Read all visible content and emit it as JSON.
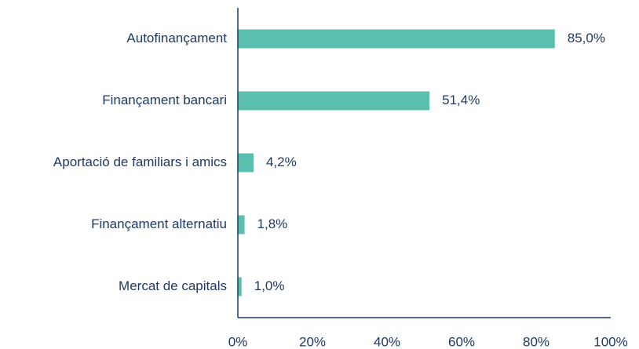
{
  "chart_data": {
    "type": "bar",
    "orientation": "horizontal",
    "categories": [
      "Autofinançament",
      "Finançament bancari",
      "Aportació de familiars i amics",
      "Finançament alternatiu",
      "Mercat de capitals"
    ],
    "values": [
      85.0,
      51.4,
      4.2,
      1.8,
      1.0
    ],
    "value_labels": [
      "85,0%",
      "51,4%",
      "4,2%",
      "1,8%",
      "1,0%"
    ],
    "color": "#5bbfb0",
    "xlim": [
      0,
      100
    ],
    "xticks": [
      {
        "value": 0,
        "label": "0%"
      },
      {
        "value": 20,
        "label": "20%"
      },
      {
        "value": 40,
        "label": "40%"
      },
      {
        "value": 60,
        "label": "60%"
      },
      {
        "value": 80,
        "label": "80%"
      },
      {
        "value": 100,
        "label": "100%"
      }
    ],
    "grid": false
  }
}
